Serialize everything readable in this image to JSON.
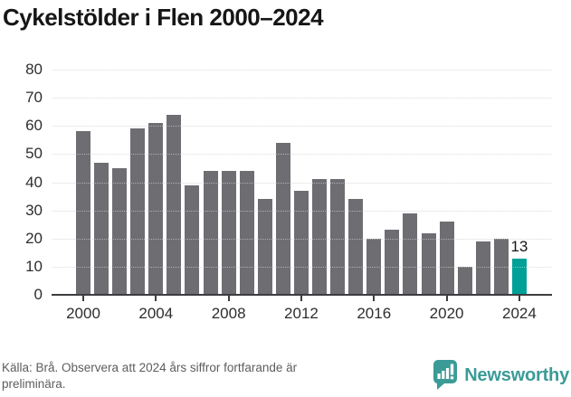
{
  "title": "Cykelstölder i Flen 2000–2024",
  "chart_data": {
    "type": "bar",
    "title": "Cykelstölder i Flen 2000–2024",
    "categories": [
      2000,
      2001,
      2002,
      2003,
      2004,
      2005,
      2006,
      2007,
      2008,
      2009,
      2010,
      2011,
      2012,
      2013,
      2014,
      2015,
      2016,
      2017,
      2018,
      2019,
      2020,
      2021,
      2022,
      2023,
      2024
    ],
    "values": [
      58,
      47,
      45,
      59,
      61,
      64,
      39,
      44,
      44,
      44,
      34,
      54,
      37,
      41,
      41,
      34,
      20,
      23,
      29,
      22,
      26,
      10,
      19,
      20,
      13
    ],
    "xlabel": "",
    "ylabel": "",
    "ylim": [
      0,
      80
    ],
    "yticks": [
      0,
      10,
      20,
      30,
      40,
      50,
      60,
      70,
      80
    ],
    "xticks": [
      2000,
      2004,
      2008,
      2012,
      2016,
      2020,
      2024
    ],
    "grid": true,
    "legend_position": "none",
    "bar_color": "#6e6d72",
    "highlight": {
      "year": 2024,
      "value": 13,
      "data_label": "13",
      "color": "#00a098"
    }
  },
  "footer": {
    "source_note": "Källa: Brå. Observera att 2024 års siffror fortfarande är preliminära.",
    "brand_name": "Newsworthy"
  },
  "colors": {
    "bar": "#6e6d72",
    "highlight": "#00a098",
    "axis": "#3d3d3f",
    "gridline": "#e7e7e7",
    "title_text": "#161616",
    "tick_text": "#2e2e30",
    "footer_text": "#5d5d5f",
    "brand": "#3b9b97"
  }
}
